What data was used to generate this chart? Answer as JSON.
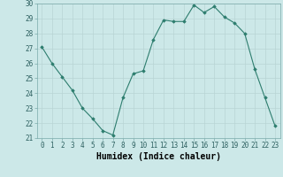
{
  "x": [
    0,
    1,
    2,
    3,
    4,
    5,
    6,
    7,
    8,
    9,
    10,
    11,
    12,
    13,
    14,
    15,
    16,
    17,
    18,
    19,
    20,
    21,
    22,
    23
  ],
  "y": [
    27.1,
    26.0,
    25.1,
    24.2,
    23.0,
    22.3,
    21.5,
    21.2,
    23.7,
    25.3,
    25.5,
    27.6,
    28.9,
    28.8,
    28.8,
    29.9,
    29.4,
    29.8,
    29.1,
    28.7,
    28.0,
    25.6,
    23.7,
    21.8
  ],
  "xlabel": "Humidex (Indice chaleur)",
  "ylim": [
    21,
    30
  ],
  "xlim_min": -0.5,
  "xlim_max": 23.5,
  "yticks": [
    21,
    22,
    23,
    24,
    25,
    26,
    27,
    28,
    29,
    30
  ],
  "xticks": [
    0,
    1,
    2,
    3,
    4,
    5,
    6,
    7,
    8,
    9,
    10,
    11,
    12,
    13,
    14,
    15,
    16,
    17,
    18,
    19,
    20,
    21,
    22,
    23
  ],
  "line_color": "#2d7d6e",
  "marker": "D",
  "marker_size": 1.8,
  "bg_color": "#cce8e8",
  "grid_color": "#b8d4d4",
  "xlabel_fontsize": 7,
  "tick_fontsize": 5.5,
  "linewidth": 0.8
}
